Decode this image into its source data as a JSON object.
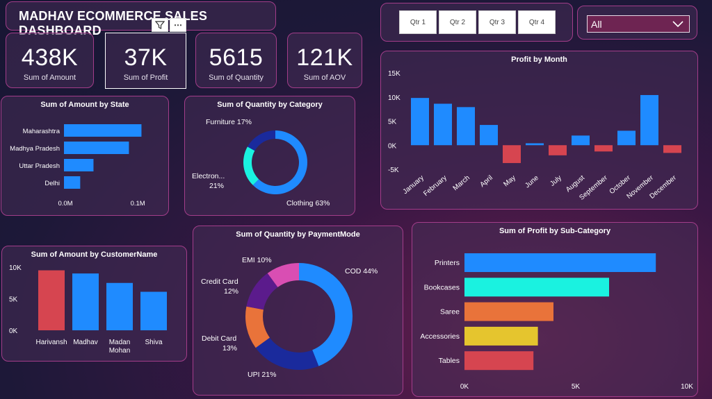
{
  "header": {
    "title": "MADHAV ECOMMERCE SALES DASHBOARD"
  },
  "toolbar": {
    "filter_icon": "filter-icon",
    "more_label": "⋯"
  },
  "kpis": [
    {
      "value": "438K",
      "label": "Sum of Amount"
    },
    {
      "value": "37K",
      "label": "Sum of Profit"
    },
    {
      "value": "5615",
      "label": "Sum of Quantity"
    },
    {
      "value": "121K",
      "label": "Sum of AOV"
    }
  ],
  "quarters": [
    "Qtr 1",
    "Qtr 2",
    "Qtr 3",
    "Qtr 4"
  ],
  "slicer": {
    "value": "All"
  },
  "colors": {
    "blue": "#1f8bff",
    "red": "#d64550",
    "teal": "#1af2e0",
    "orange": "#e9733a",
    "yellow": "#e5c52e",
    "navy": "#1a2a9c",
    "purple": "#5b1b8c",
    "pink": "#d94eb3",
    "border": "#a33d8a"
  },
  "chart_data": [
    {
      "id": "profit_by_month",
      "type": "bar",
      "title": "Profit by Month",
      "categories": [
        "January",
        "February",
        "March",
        "April",
        "May",
        "June",
        "July",
        "August",
        "September",
        "October",
        "November",
        "December"
      ],
      "values": [
        9800,
        8600,
        7900,
        4200,
        -3700,
        400,
        -2100,
        2000,
        -1300,
        3000,
        10400,
        -1600
      ],
      "yticks": [
        "15K",
        "10K",
        "5K",
        "0K",
        "-5K"
      ],
      "ylim": [
        -5000,
        15000
      ]
    },
    {
      "id": "amount_by_state",
      "type": "bar",
      "title": "Sum of Amount by State",
      "categories": [
        "Maharashtra",
        "Madhya Pradesh",
        "Uttar Pradesh",
        "Delhi"
      ],
      "values": [
        0.105,
        0.088,
        0.04,
        0.022
      ],
      "xticks": [
        "0.0M",
        "0.1M"
      ],
      "xlim": [
        0,
        0.13
      ]
    },
    {
      "id": "quantity_by_category",
      "type": "pie",
      "title": "Sum of Quantity by Category",
      "slices": [
        {
          "label": "Clothing 63%",
          "value": 63
        },
        {
          "label": "Electron... 21%",
          "value": 21
        },
        {
          "label": "Furniture 17%",
          "value": 17
        }
      ]
    },
    {
      "id": "amount_by_customer",
      "type": "bar",
      "title": "Sum of Amount by CustomerName",
      "categories": [
        "Harivansh",
        "Madhav",
        "Madan Mohan",
        "Shiva"
      ],
      "values": [
        9500,
        9000,
        7500,
        6100
      ],
      "yticks": [
        "10K",
        "5K",
        "0K"
      ],
      "ylim": [
        0,
        10000
      ]
    },
    {
      "id": "quantity_by_paymentmode",
      "type": "pie",
      "title": "Sum of Quantity by PaymentMode",
      "slices": [
        {
          "label": "COD 44%",
          "value": 44
        },
        {
          "label": "UPI 21%",
          "value": 21
        },
        {
          "label": "Debit Card 13%",
          "value": 13
        },
        {
          "label": "Credit Card 12%",
          "value": 12
        },
        {
          "label": "EMI 10%",
          "value": 10
        }
      ]
    },
    {
      "id": "profit_by_subcategory",
      "type": "bar",
      "title": "Sum of Profit by Sub-Category",
      "categories": [
        "Printers",
        "Bookcases",
        "Saree",
        "Accessories",
        "Tables"
      ],
      "values": [
        8600,
        6500,
        4000,
        3300,
        3100
      ],
      "xticks": [
        "0K",
        "5K",
        "10K"
      ],
      "xlim": [
        0,
        10000
      ]
    }
  ]
}
